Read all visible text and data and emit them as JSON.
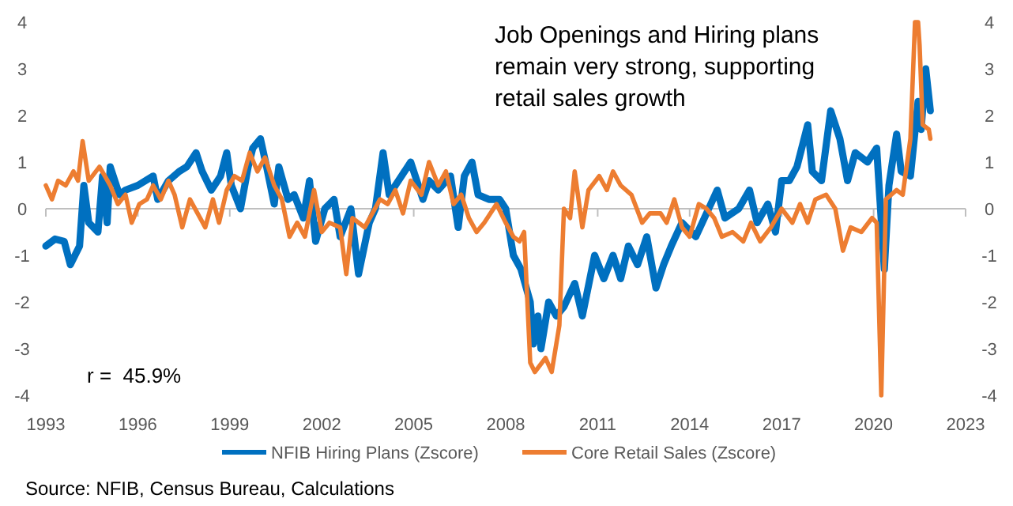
{
  "chart_data": {
    "type": "line",
    "title": "Job Openings and Hiring plans remain very strong, supporting retail sales growth",
    "xlim": [
      1993,
      2023
    ],
    "xticks": [
      1993,
      1996,
      1999,
      2002,
      2005,
      2008,
      2011,
      2014,
      2017,
      2020,
      2023
    ],
    "ylim": [
      -4,
      4
    ],
    "yticks": [
      -4,
      -3,
      -2,
      -1,
      0,
      1,
      2,
      3,
      4
    ],
    "y2lim": [
      -4,
      4
    ],
    "y2ticks": [
      -4,
      -3,
      -2,
      -1,
      0,
      1,
      2,
      3,
      4
    ],
    "legend": "bottom",
    "line_style": "solid",
    "marker": "none",
    "annotations": [
      "r =  45.9%",
      "Source: NFIB, Census Bureau, Calculations"
    ],
    "series": [
      {
        "name": "NFIB Hiring Plans (Zscore)",
        "color": "#0070c0",
        "x": [
          1993.0,
          1993.3,
          1993.6,
          1993.8,
          1994.1,
          1994.24,
          1994.4,
          1994.7,
          1994.85,
          1995.0,
          1995.1,
          1995.4,
          1995.6,
          1996.0,
          1996.5,
          1996.65,
          1997.0,
          1997.35,
          1997.6,
          1997.9,
          1998.1,
          1998.4,
          1998.7,
          1998.9,
          1999.05,
          1999.35,
          1999.6,
          1999.75,
          2000.0,
          2000.2,
          2000.45,
          2000.6,
          2000.9,
          2001.1,
          2001.4,
          2001.6,
          2001.8,
          2002.1,
          2002.4,
          2002.6,
          2002.95,
          2003.2,
          2003.55,
          2003.75,
          2004.0,
          2004.2,
          2004.6,
          2004.9,
          2005.3,
          2005.5,
          2005.8,
          2006.2,
          2006.45,
          2006.65,
          2006.9,
          2007.1,
          2007.45,
          2007.8,
          2008.0,
          2008.25,
          2008.5,
          2008.8,
          2008.9,
          2009.05,
          2009.15,
          2009.4,
          2009.65,
          2009.9,
          2010.25,
          2010.5,
          2010.9,
          2011.2,
          2011.5,
          2011.75,
          2012.0,
          2012.3,
          2012.6,
          2012.9,
          2013.15,
          2013.4,
          2013.75,
          2014.2,
          2014.55,
          2014.9,
          2015.15,
          2015.6,
          2015.95,
          2016.2,
          2016.55,
          2016.8,
          2017.0,
          2017.25,
          2017.5,
          2017.85,
          2018.0,
          2018.3,
          2018.6,
          2018.9,
          2019.15,
          2019.4,
          2019.8,
          2020.1,
          2020.35,
          2020.5,
          2020.75,
          2020.9,
          2021.2,
          2021.45,
          2021.55,
          2021.7,
          2021.85
        ],
        "values": [
          -0.8,
          -0.65,
          -0.7,
          -1.2,
          -0.8,
          0.5,
          -0.3,
          -0.5,
          0.7,
          -0.3,
          0.9,
          0.3,
          0.4,
          0.5,
          0.7,
          0.2,
          0.6,
          0.8,
          0.9,
          1.2,
          0.8,
          0.4,
          0.7,
          1.2,
          0.5,
          0.0,
          0.9,
          1.3,
          1.5,
          0.9,
          0.1,
          0.9,
          0.2,
          0.3,
          -0.2,
          0.6,
          -0.7,
          0.0,
          0.2,
          -0.6,
          0.0,
          -1.4,
          -0.3,
          0.0,
          1.2,
          0.3,
          0.7,
          1.0,
          0.2,
          0.6,
          0.4,
          0.7,
          -0.4,
          0.7,
          1.0,
          0.3,
          0.2,
          0.2,
          0.0,
          -1.0,
          -1.3,
          -2.0,
          -2.9,
          -2.3,
          -3.0,
          -2.0,
          -2.3,
          -2.1,
          -1.6,
          -2.3,
          -1.0,
          -1.5,
          -1.0,
          -1.5,
          -0.8,
          -1.2,
          -0.6,
          -1.7,
          -1.2,
          -0.8,
          -0.3,
          -0.6,
          -0.1,
          0.4,
          -0.2,
          0.0,
          0.4,
          -0.3,
          0.1,
          -0.5,
          0.6,
          0.6,
          0.9,
          1.8,
          0.8,
          0.6,
          2.1,
          1.5,
          0.6,
          1.2,
          1.0,
          1.3,
          -1.3,
          0.5,
          1.6,
          0.8,
          0.7,
          2.3,
          1.7,
          3.0,
          2.1
        ]
      },
      {
        "name": "Core Retail Sales (Zscore)",
        "color": "#ed7d31",
        "x": [
          1993.0,
          1993.2,
          1993.4,
          1993.65,
          1993.9,
          1994.05,
          1994.2,
          1994.4,
          1994.75,
          1995.1,
          1995.35,
          1995.6,
          1995.8,
          1996.05,
          1996.3,
          1996.5,
          1996.75,
          1997.0,
          1997.2,
          1997.45,
          1997.7,
          1997.95,
          1998.2,
          1998.45,
          1998.65,
          1998.9,
          1999.15,
          1999.4,
          1999.65,
          1999.9,
          2000.15,
          2000.45,
          2000.7,
          2000.95,
          2001.2,
          2001.45,
          2001.75,
          2002.0,
          2002.25,
          2002.6,
          2002.8,
          2003.0,
          2003.4,
          2003.65,
          2003.9,
          2004.15,
          2004.4,
          2004.65,
          2004.9,
          2005.25,
          2005.5,
          2005.8,
          2006.05,
          2006.3,
          2006.55,
          2006.8,
          2007.05,
          2007.3,
          2007.7,
          2008.0,
          2008.25,
          2008.45,
          2008.6,
          2008.8,
          2008.95,
          2009.3,
          2009.5,
          2009.75,
          2009.9,
          2010.1,
          2010.25,
          2010.5,
          2010.7,
          2011.05,
          2011.3,
          2011.5,
          2011.75,
          2012.1,
          2012.45,
          2012.7,
          2013.05,
          2013.25,
          2013.5,
          2013.75,
          2014.0,
          2014.3,
          2014.55,
          2014.8,
          2015.05,
          2015.4,
          2015.75,
          2016.0,
          2016.3,
          2016.65,
          2017.0,
          2017.35,
          2017.6,
          2017.85,
          2018.1,
          2018.45,
          2018.75,
          2019.0,
          2019.25,
          2019.6,
          2019.95,
          2020.1,
          2020.25,
          2020.4,
          2020.75,
          2020.95,
          2021.2,
          2021.35,
          2021.45,
          2021.5,
          2021.6,
          2021.8,
          2021.85
        ],
        "values": [
          0.5,
          0.2,
          0.6,
          0.5,
          0.8,
          0.6,
          1.45,
          0.6,
          0.9,
          0.5,
          0.1,
          0.3,
          -0.3,
          0.1,
          0.2,
          0.5,
          0.2,
          0.6,
          0.3,
          -0.4,
          0.2,
          -0.1,
          -0.4,
          0.2,
          -0.3,
          0.4,
          0.7,
          0.6,
          1.2,
          0.8,
          1.1,
          0.5,
          0.2,
          -0.6,
          -0.3,
          -0.6,
          0.4,
          -0.5,
          -0.3,
          -0.4,
          -1.4,
          -0.2,
          -0.4,
          -0.1,
          0.2,
          0.1,
          0.4,
          -0.1,
          0.6,
          0.3,
          1.0,
          0.5,
          0.8,
          0.1,
          0.3,
          -0.2,
          -0.5,
          -0.3,
          0.1,
          -0.3,
          -0.6,
          -0.7,
          -0.5,
          -3.3,
          -3.5,
          -3.2,
          -3.5,
          -2.5,
          0.0,
          -0.2,
          0.8,
          -0.4,
          0.4,
          0.7,
          0.4,
          0.8,
          0.5,
          0.3,
          -0.3,
          -0.1,
          -0.1,
          -0.3,
          0.2,
          -0.4,
          -0.6,
          0.1,
          0.0,
          -0.2,
          -0.6,
          -0.5,
          -0.7,
          -0.3,
          -0.7,
          -0.4,
          0.0,
          -0.3,
          0.1,
          -0.3,
          0.2,
          0.3,
          0.0,
          -0.9,
          -0.4,
          -0.5,
          -0.2,
          -0.3,
          -4.0,
          0.2,
          0.4,
          0.3,
          1.5,
          4.0,
          4.0,
          3.5,
          1.8,
          1.7,
          1.5
        ]
      }
    ]
  }
}
